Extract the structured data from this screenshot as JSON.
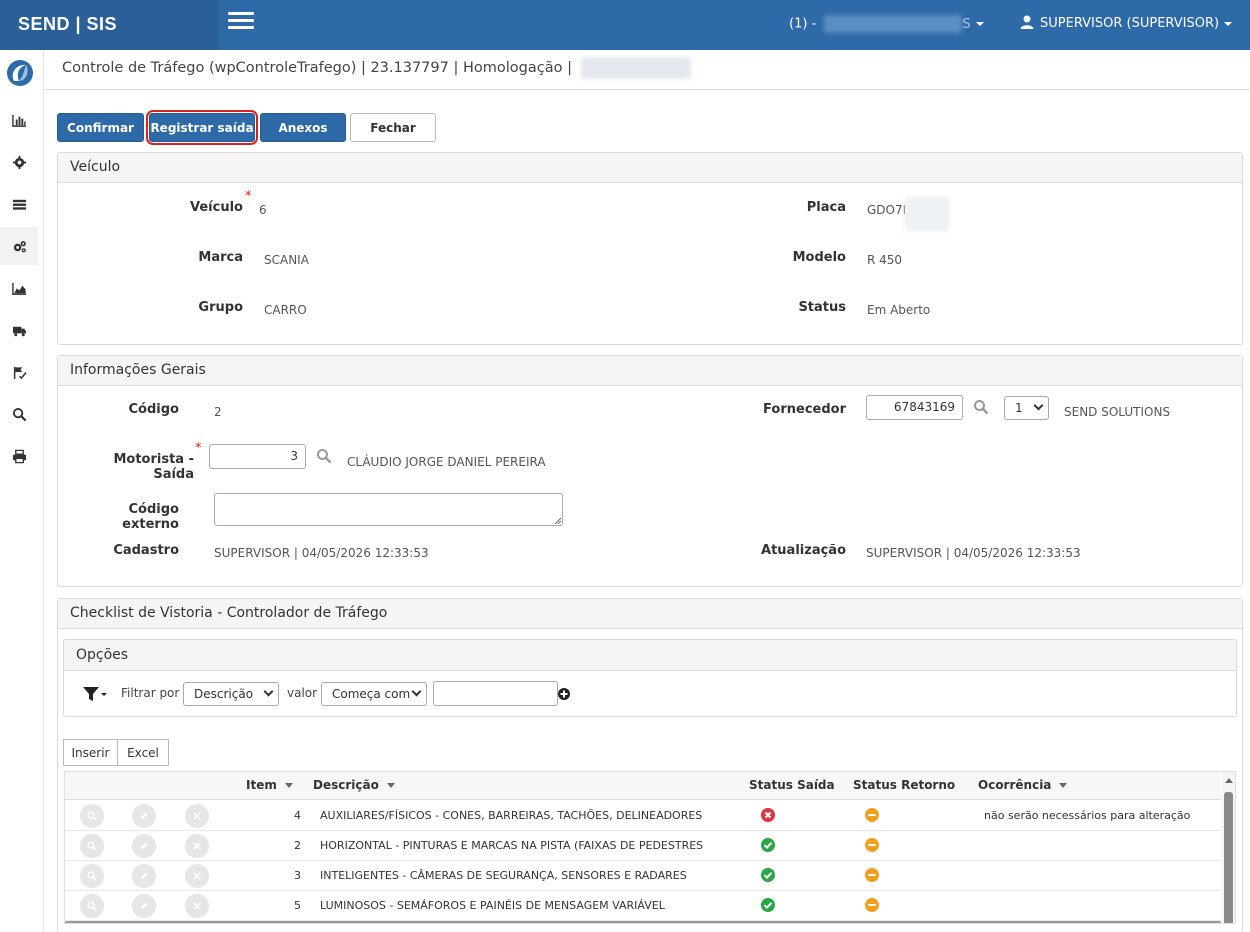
{
  "brand": "SEND | SIS",
  "topbar": {
    "company_prefix": "(1) -",
    "company_suffix": "S",
    "user": "SUPERVISOR (SUPERVISOR)"
  },
  "page_title": "Controle de Tráfego (wpControleTrafego) | 23.137797 | Homologação |",
  "buttons": {
    "confirm": "Confirmar",
    "register_exit": "Registrar saída",
    "attachments": "Anexos",
    "close": "Fechar"
  },
  "vehicle": {
    "title": "Veículo",
    "veiculo_label": "Veículo",
    "veiculo_value": "6",
    "placa_label": "Placa",
    "placa_value": "GDO7I",
    "marca_label": "Marca",
    "marca_value": "SCANIA",
    "modelo_label": "Modelo",
    "modelo_value": "R 450",
    "grupo_label": "Grupo",
    "grupo_value": "CARRO",
    "status_label": "Status",
    "status_value": "Em Aberto"
  },
  "general": {
    "title": "Informações Gerais",
    "codigo_label": "Código",
    "codigo_value": "2",
    "fornecedor_label": "Fornecedor",
    "fornecedor_value": "67843169",
    "fornecedor_select": "1",
    "fornecedor_name": "SEND SOLUTIONS",
    "motorista_label": "Motorista - Saída",
    "motorista_value": "3",
    "motorista_name": "CLÁUDIO JORGE DANIEL PEREIRA",
    "codigo_externo_label": "Código externo",
    "cadastro_label": "Cadastro",
    "cadastro_value": "SUPERVISOR | 04/05/2026 12:33:53",
    "atualizacao_label": "Atualização",
    "atualizacao_value": "SUPERVISOR | 04/05/2026 12:33:53"
  },
  "checklist": {
    "title": "Checklist de Vistoria - Controlador de Tráfego",
    "options_title": "Opções",
    "filter_label": "Filtrar por",
    "filter_field": "Descrição",
    "value_label": "valor",
    "filter_op": "Começa com",
    "insert": "Inserir",
    "excel": "Excel",
    "columns": {
      "item": "Item",
      "descricao": "Descrição",
      "status_saida": "Status Saída",
      "status_retorno": "Status Retorno",
      "ocorrencia": "Ocorrência"
    },
    "rows": [
      {
        "item": "4",
        "descricao": "AUXILIARES/FÍSICOS - CONES, BARREIRAS, TACHÕES, DELINEADORES",
        "saida": "error",
        "retorno": "pending",
        "ocorrencia": "não serão necessários para alteração"
      },
      {
        "item": "2",
        "descricao": "HORIZONTAL - PINTURAS E MARCAS NA PISTA (FAIXAS DE PEDESTRES",
        "saida": "ok",
        "retorno": "pending",
        "ocorrencia": ""
      },
      {
        "item": "3",
        "descricao": "INTELIGENTES - CÂMERAS DE SEGURANÇA, SENSORES E RADARES",
        "saida": "ok",
        "retorno": "pending",
        "ocorrencia": ""
      },
      {
        "item": "5",
        "descricao": "LUMINOSOS - SEMÁFOROS E PAINÉIS DE MENSAGEM VARIÁVEL",
        "saida": "ok",
        "retorno": "pending",
        "ocorrencia": ""
      }
    ]
  },
  "colors": {
    "primary": "#2f6aa8",
    "ok": "#28a745",
    "error": "#dc3545",
    "pending": "#f0a020"
  }
}
